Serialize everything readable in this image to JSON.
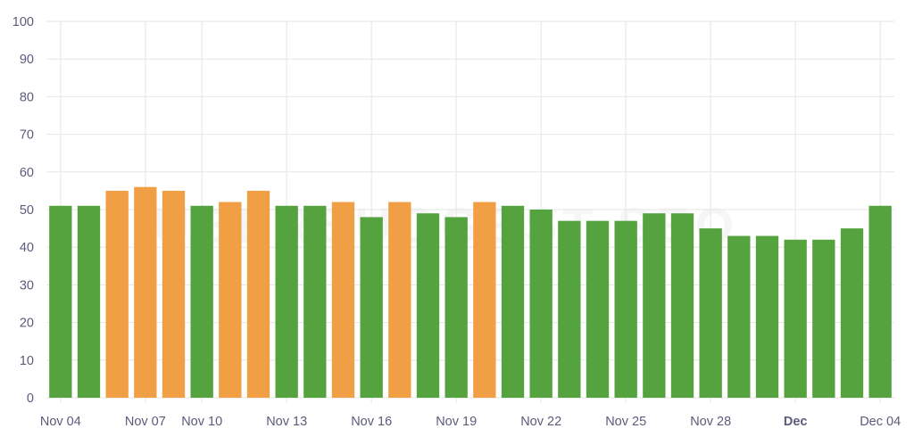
{
  "chart_data": {
    "type": "bar",
    "title": "",
    "xlabel": "",
    "ylabel": "",
    "ylim": [
      0,
      100
    ],
    "yticks": [
      0,
      10,
      20,
      30,
      40,
      50,
      60,
      70,
      80,
      90,
      100
    ],
    "x_tick_labels": [
      {
        "index": 0,
        "label": "Nov 04",
        "bold": false
      },
      {
        "index": 3,
        "label": "Nov 07",
        "bold": false
      },
      {
        "index": 5,
        "label": "Nov 10",
        "bold": false
      },
      {
        "index": 8,
        "label": "Nov 13",
        "bold": false
      },
      {
        "index": 11,
        "label": "Nov 16",
        "bold": false
      },
      {
        "index": 14,
        "label": "Nov 19",
        "bold": false
      },
      {
        "index": 17,
        "label": "Nov 22",
        "bold": false
      },
      {
        "index": 20,
        "label": "Nov 25",
        "bold": false
      },
      {
        "index": 23,
        "label": "Nov 28",
        "bold": false
      },
      {
        "index": 26,
        "label": "Dec",
        "bold": true
      },
      {
        "index": 29,
        "label": "Dec 04",
        "bold": false
      }
    ],
    "values": [
      51,
      51,
      55,
      56,
      55,
      51,
      52,
      55,
      51,
      51,
      52,
      48,
      52,
      49,
      48,
      52,
      51,
      50,
      47,
      47,
      47,
      49,
      49,
      45,
      43,
      43,
      42,
      42,
      45,
      51
    ],
    "bar_status": [
      "good",
      "good",
      "warn",
      "warn",
      "warn",
      "good",
      "warn",
      "warn",
      "good",
      "good",
      "warn",
      "good",
      "warn",
      "good",
      "good",
      "warn",
      "good",
      "good",
      "good",
      "good",
      "good",
      "good",
      "good",
      "good",
      "good",
      "good",
      "good",
      "good",
      "good",
      "good"
    ],
    "colors": {
      "good": "#55a33e",
      "warn": "#f19f45"
    },
    "grid": true
  },
  "watermark": {
    "text": "UBERSUGGEST SEO"
  }
}
